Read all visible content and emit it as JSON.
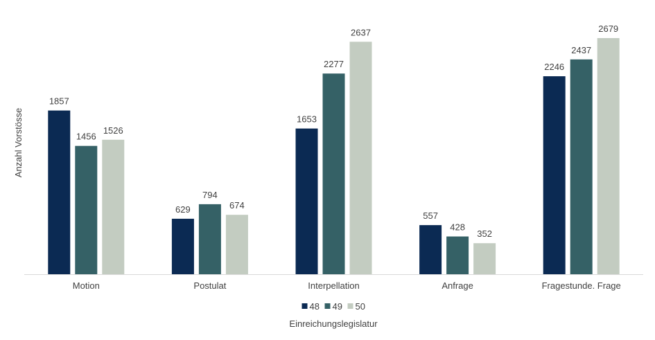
{
  "chart_data": {
    "type": "bar",
    "categories": [
      "Motion",
      "Postulat",
      "Interpellation",
      "Anfrage",
      "Fragestunde. Frage"
    ],
    "series": [
      {
        "name": "48",
        "color": "#0b2a53",
        "values": [
          1857,
          629,
          1653,
          557,
          2246
        ]
      },
      {
        "name": "49",
        "color": "#356166",
        "values": [
          1456,
          794,
          2277,
          428,
          2437
        ]
      },
      {
        "name": "50",
        "color": "#c3ccc1",
        "values": [
          1526,
          674,
          2637,
          352,
          2679
        ]
      }
    ],
    "xlabel": "Einreichungslegislatur",
    "ylabel": "Anzahl Vorstösse",
    "ylim": [
      0,
      2679
    ],
    "grid": false,
    "legend_position": "bottom"
  }
}
